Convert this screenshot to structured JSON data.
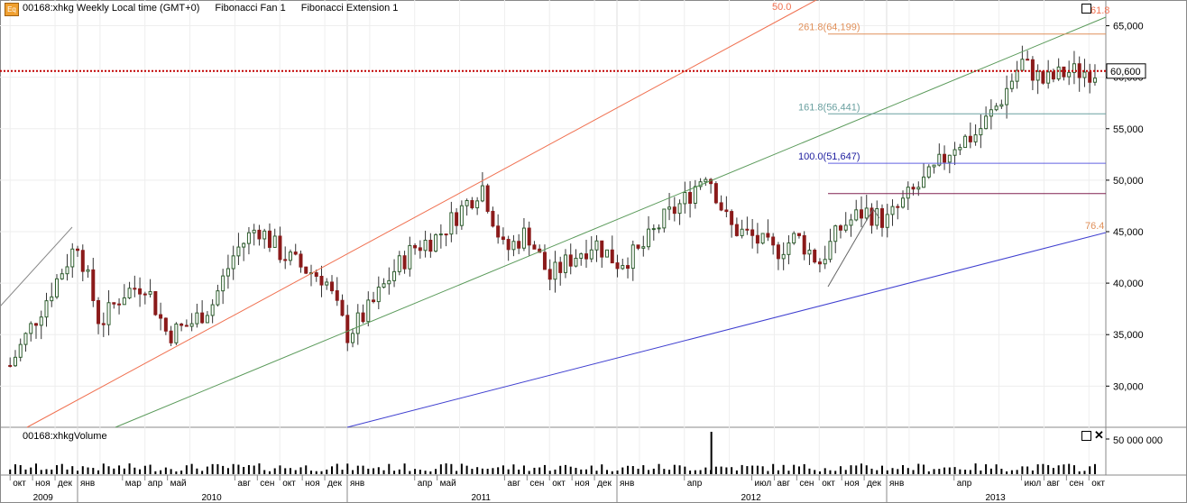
{
  "header": {
    "symbol_title": "00168:xhkg Weekly Local time (GMT+0)",
    "fan_label": "Fibonacci Fan 1",
    "ext_label": "Fibonacci Extension 1",
    "icon_letter": "Eq"
  },
  "volume": {
    "title": "00168:xhkgVolume",
    "tick": "50 000 000"
  },
  "price_axis": {
    "ticks": [
      "65,000",
      "60,000",
      "55,000",
      "50,000",
      "45,000",
      "40,000",
      "35,000",
      "30,000"
    ],
    "current": "60,600"
  },
  "fib_labels": {
    "fan_50": "50.0",
    "fan_618": "61.8",
    "fan_764": "76.4",
    "ext_2618": "261.8(64,199)",
    "ext_1618": "161.8(56,441)",
    "ext_100": "100.0(51,647)"
  },
  "time_axis": {
    "months": [
      "окт",
      "ноя",
      "дек",
      "янв",
      "мар",
      "апр",
      "май",
      "авг",
      "сен",
      "окт",
      "ноя",
      "дек",
      "янв",
      "апр",
      "май",
      "авг",
      "сен",
      "окт",
      "ноя",
      "дек",
      "янв",
      "апр",
      "июл",
      "авг",
      "сен",
      "окт",
      "ноя",
      "дек",
      "янв",
      "апр",
      "июл",
      "авг",
      "сен",
      "окт"
    ],
    "years": [
      "2009",
      "2010",
      "2011",
      "2012",
      "2013"
    ]
  },
  "colors": {
    "up": "#2e5e2e",
    "down": "#8b1a1a",
    "fan_50": "#f07050",
    "fan_618": "#5a9a5a",
    "fan_764": "#4040d0",
    "ext_2618": "#e0905a",
    "ext_1618": "#6aa0a0",
    "ext_100": "#6060e0",
    "ext_mid": "#802050",
    "current_line": "#c00000"
  },
  "chart_data": {
    "type": "candlestick",
    "interval": "weekly",
    "ylim": [
      26000,
      67500
    ],
    "start": "2009-10",
    "end": "2013-10",
    "current_price": 60600,
    "anchors": [
      {
        "date": "2009-10",
        "price": 32000
      },
      {
        "date": "2009-11",
        "price": 36000
      },
      {
        "date": "2009-12",
        "price": 40000
      },
      {
        "date": "2010-01",
        "price": 44000
      },
      {
        "date": "2010-02",
        "price": 36000
      },
      {
        "date": "2010-03",
        "price": 39000
      },
      {
        "date": "2010-04",
        "price": 40000
      },
      {
        "date": "2010-05",
        "price": 35000
      },
      {
        "date": "2010-06",
        "price": 36000
      },
      {
        "date": "2010-07",
        "price": 38000
      },
      {
        "date": "2010-08",
        "price": 43000
      },
      {
        "date": "2010-09",
        "price": 45500
      },
      {
        "date": "2010-10",
        "price": 43000
      },
      {
        "date": "2010-11",
        "price": 41500
      },
      {
        "date": "2010-12",
        "price": 40500
      },
      {
        "date": "2011-01",
        "price": 35000
      },
      {
        "date": "2011-02",
        "price": 37500
      },
      {
        "date": "2011-03",
        "price": 41000
      },
      {
        "date": "2011-04",
        "price": 43500
      },
      {
        "date": "2011-05",
        "price": 44500
      },
      {
        "date": "2011-06",
        "price": 47000
      },
      {
        "date": "2011-07",
        "price": 49500
      },
      {
        "date": "2011-08",
        "price": 43000
      },
      {
        "date": "2011-09",
        "price": 45000
      },
      {
        "date": "2011-10",
        "price": 40500
      },
      {
        "date": "2011-11",
        "price": 42500
      },
      {
        "date": "2011-12",
        "price": 44000
      },
      {
        "date": "2012-01",
        "price": 42000
      },
      {
        "date": "2012-02",
        "price": 43000
      },
      {
        "date": "2012-03",
        "price": 46000
      },
      {
        "date": "2012-04",
        "price": 48000
      },
      {
        "date": "2012-05",
        "price": 51000
      },
      {
        "date": "2012-06",
        "price": 45500
      },
      {
        "date": "2012-07",
        "price": 44500
      },
      {
        "date": "2012-08",
        "price": 43000
      },
      {
        "date": "2012-09",
        "price": 44500
      },
      {
        "date": "2012-10",
        "price": 42000
      },
      {
        "date": "2012-11",
        "price": 45500
      },
      {
        "date": "2012-12",
        "price": 47000
      },
      {
        "date": "2013-01",
        "price": 46000
      },
      {
        "date": "2013-02",
        "price": 48500
      },
      {
        "date": "2013-03",
        "price": 50500
      },
      {
        "date": "2013-04",
        "price": 53500
      },
      {
        "date": "2013-05",
        "price": 54500
      },
      {
        "date": "2013-06",
        "price": 57500
      },
      {
        "date": "2013-07",
        "price": 61500
      },
      {
        "date": "2013-08",
        "price": 59500
      },
      {
        "date": "2013-09",
        "price": 60500
      },
      {
        "date": "2013-10",
        "price": 60600
      }
    ],
    "volume_spike": {
      "date": "2012-05",
      "label": "50 000 000"
    }
  }
}
